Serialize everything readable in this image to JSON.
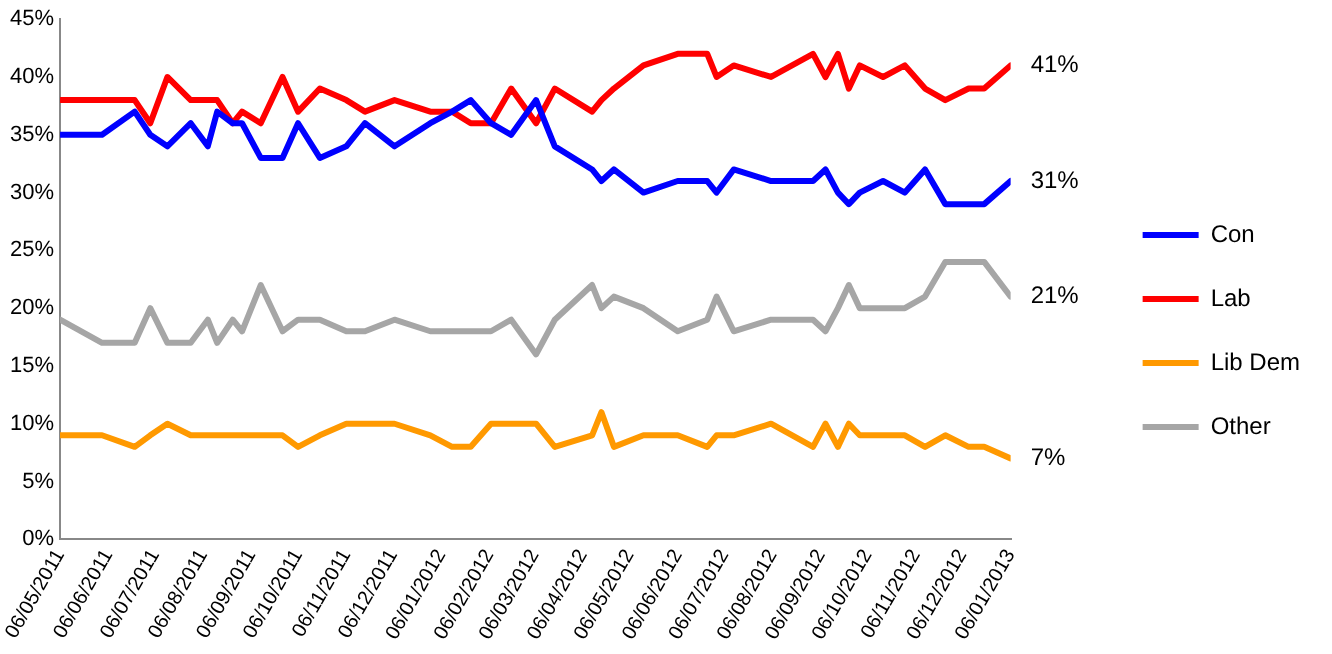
{
  "chart_data": {
    "type": "line",
    "x": [
      "2011-05-06",
      "2011-06-02",
      "2011-06-23",
      "2011-07-03",
      "2011-07-14",
      "2011-07-29",
      "2011-08-09",
      "2011-08-15",
      "2011-08-25",
      "2011-08-31",
      "2011-09-12",
      "2011-09-26",
      "2011-10-06",
      "2011-10-20",
      "2011-11-06",
      "2011-11-18",
      "2011-12-07",
      "2011-12-30",
      "2012-01-13",
      "2012-01-25",
      "2012-02-07",
      "2012-02-20",
      "2012-03-07",
      "2012-03-19",
      "2012-04-12",
      "2012-04-18",
      "2012-04-26",
      "2012-05-15",
      "2012-06-06",
      "2012-06-25",
      "2012-07-01",
      "2012-07-12",
      "2012-08-05",
      "2012-09-01",
      "2012-09-09",
      "2012-09-17",
      "2012-09-24",
      "2012-10-01",
      "2012-10-16",
      "2012-10-30",
      "2012-11-12",
      "2012-11-25",
      "2012-12-10",
      "2012-12-20",
      "2013-01-06"
    ],
    "series": [
      {
        "name": "Con",
        "color": "#0000ff",
        "values": [
          35,
          35,
          37,
          35,
          34,
          36,
          34,
          37,
          36,
          36,
          33,
          33,
          36,
          33,
          34,
          36,
          34,
          36,
          37,
          38,
          36,
          35,
          38,
          34,
          32,
          31,
          32,
          30,
          31,
          31,
          30,
          32,
          31,
          31,
          32,
          30,
          29,
          30,
          31,
          30,
          32,
          29,
          29,
          29,
          31
        ]
      },
      {
        "name": "Lab",
        "color": "#ff0000",
        "values": [
          38,
          38,
          38,
          36,
          40,
          38,
          38,
          38,
          36,
          37,
          36,
          40,
          37,
          39,
          38,
          37,
          38,
          37,
          37,
          36,
          36,
          39,
          36,
          39,
          37,
          38,
          39,
          41,
          42,
          42,
          40,
          41,
          40,
          42,
          40,
          42,
          39,
          41,
          40,
          41,
          39,
          38,
          39,
          39,
          41
        ]
      },
      {
        "name": "Lib Dem",
        "color": "#ff9900",
        "values": [
          9,
          9,
          8,
          9,
          10,
          9,
          9,
          9,
          9,
          9,
          9,
          9,
          8,
          9,
          10,
          10,
          10,
          9,
          8,
          8,
          10,
          10,
          10,
          8,
          9,
          11,
          8,
          9,
          9,
          8,
          9,
          9,
          10,
          8,
          10,
          8,
          10,
          9,
          9,
          9,
          8,
          9,
          8,
          8,
          7
        ]
      },
      {
        "name": "Other",
        "color": "#a6a6a6",
        "values": [
          19,
          17,
          17,
          20,
          17,
          17,
          19,
          17,
          19,
          18,
          22,
          18,
          19,
          19,
          18,
          18,
          19,
          18,
          18,
          18,
          18,
          19,
          16,
          19,
          22,
          20,
          21,
          20,
          18,
          19,
          21,
          18,
          19,
          19,
          18,
          20,
          22,
          20,
          20,
          20,
          21,
          24,
          24,
          24,
          21
        ]
      }
    ],
    "xlim": [
      "2011-05-06",
      "2013-01-06"
    ],
    "xticks": [
      {
        "value": "2011-05-06",
        "label": "06/05/2011"
      },
      {
        "value": "2011-06-06",
        "label": "06/06/2011"
      },
      {
        "value": "2011-07-06",
        "label": "06/07/2011"
      },
      {
        "value": "2011-08-06",
        "label": "06/08/2011"
      },
      {
        "value": "2011-09-06",
        "label": "06/09/2011"
      },
      {
        "value": "2011-10-06",
        "label": "06/10/2011"
      },
      {
        "value": "2011-11-06",
        "label": "06/11/2011"
      },
      {
        "value": "2011-12-06",
        "label": "06/12/2011"
      },
      {
        "value": "2012-01-06",
        "label": "06/01/2012"
      },
      {
        "value": "2012-02-06",
        "label": "06/02/2012"
      },
      {
        "value": "2012-03-06",
        "label": "06/03/2012"
      },
      {
        "value": "2012-04-06",
        "label": "06/04/2012"
      },
      {
        "value": "2012-05-06",
        "label": "06/05/2012"
      },
      {
        "value": "2012-06-06",
        "label": "06/06/2012"
      },
      {
        "value": "2012-07-06",
        "label": "06/07/2012"
      },
      {
        "value": "2012-08-06",
        "label": "06/08/2012"
      },
      {
        "value": "2012-09-06",
        "label": "06/09/2012"
      },
      {
        "value": "2012-10-06",
        "label": "06/10/2012"
      },
      {
        "value": "2012-11-06",
        "label": "06/11/2012"
      },
      {
        "value": "2012-12-06",
        "label": "06/12/2012"
      },
      {
        "value": "2013-01-06",
        "label": "06/01/2013"
      }
    ],
    "ylim": [
      0,
      45
    ],
    "yticks": [
      {
        "value": 0,
        "label": "0%"
      },
      {
        "value": 5,
        "label": "5%"
      },
      {
        "value": 10,
        "label": "10%"
      },
      {
        "value": 15,
        "label": "15%"
      },
      {
        "value": 20,
        "label": "20%"
      },
      {
        "value": 25,
        "label": "25%"
      },
      {
        "value": 30,
        "label": "30%"
      },
      {
        "value": 35,
        "label": "35%"
      },
      {
        "value": 40,
        "label": "40%"
      },
      {
        "value": 45,
        "label": "45%"
      }
    ],
    "annotations": [
      {
        "text": "41%",
        "x": "2013-01-06",
        "y": 41
      },
      {
        "text": "31%",
        "x": "2013-01-06",
        "y": 31
      },
      {
        "text": "21%",
        "x": "2013-01-06",
        "y": 21
      },
      {
        "text": "7%",
        "x": "2013-01-06",
        "y": 7
      }
    ],
    "legend": "right",
    "grid": false,
    "marker": "none",
    "line_style": "solid"
  }
}
